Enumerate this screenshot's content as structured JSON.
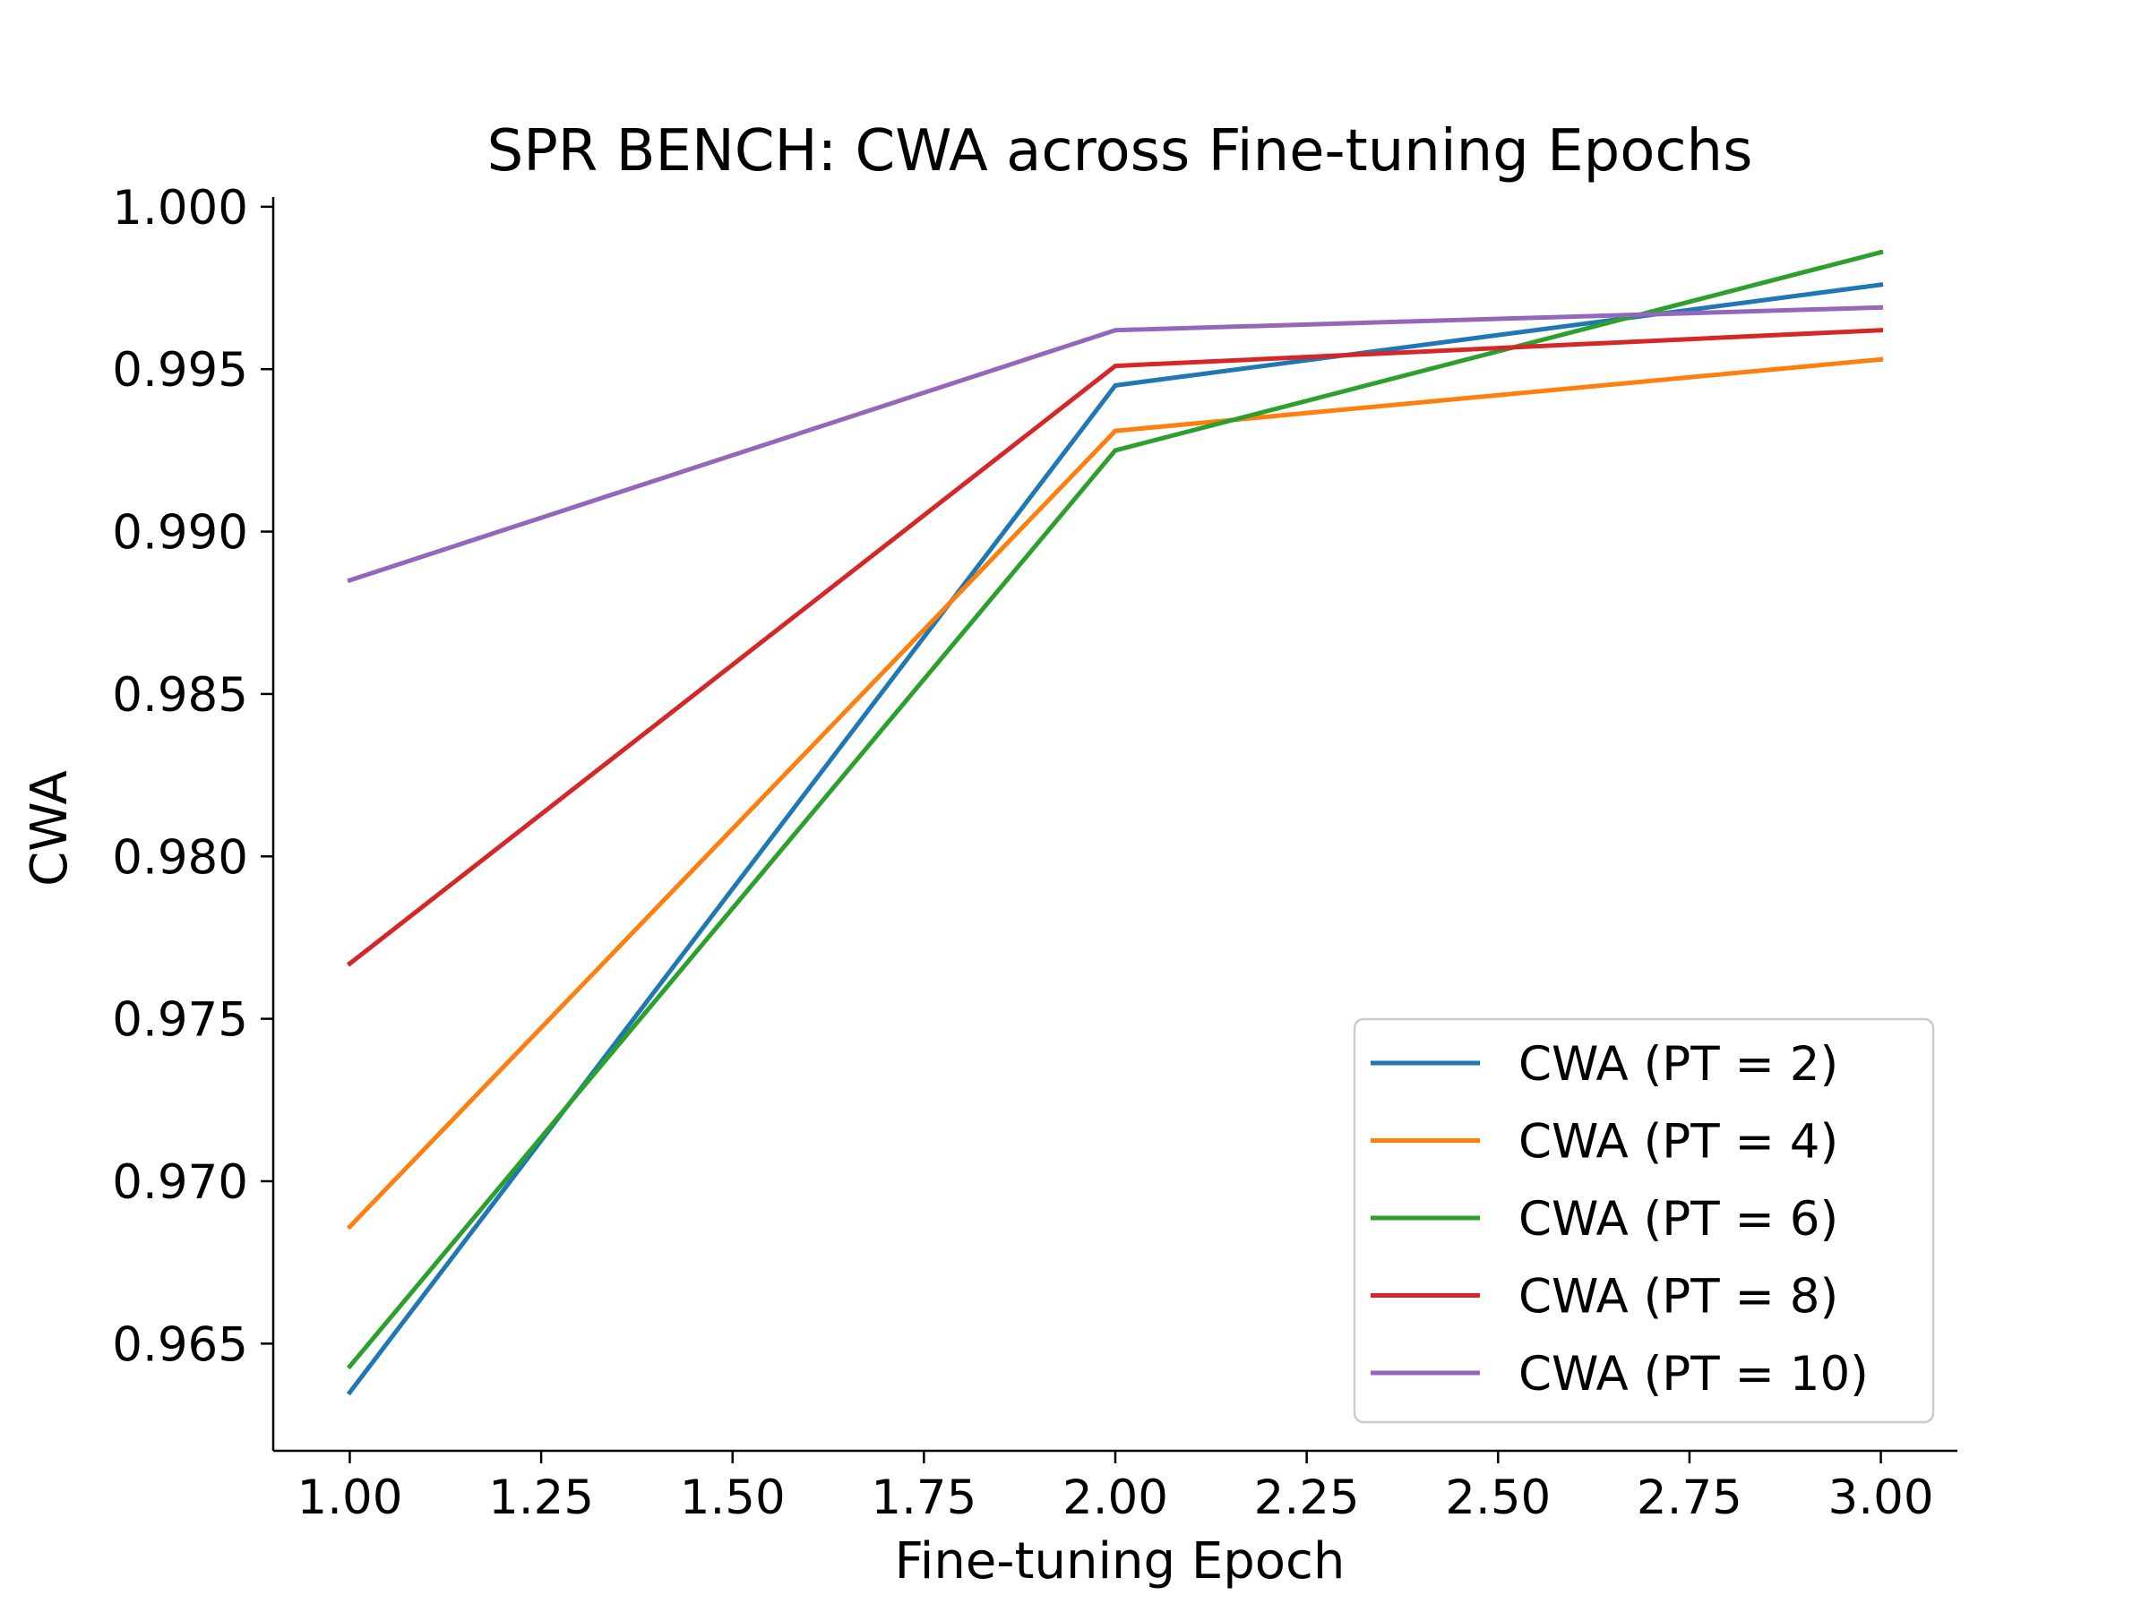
{
  "chart_data": {
    "type": "line",
    "title": "SPR BENCH: CWA across Fine-tuning Epochs",
    "xlabel": "Fine-tuning Epoch",
    "ylabel": "CWA",
    "x": [
      1.0,
      2.0,
      3.0
    ],
    "xlim": [
      0.9,
      3.1
    ],
    "ylim": [
      0.9617,
      1.0003
    ],
    "xticks": [
      1.0,
      1.25,
      1.5,
      1.75,
      2.0,
      2.25,
      2.5,
      2.75,
      3.0
    ],
    "xtick_labels": [
      "1.00",
      "1.25",
      "1.50",
      "1.75",
      "2.00",
      "2.25",
      "2.50",
      "2.75",
      "3.00"
    ],
    "yticks": [
      0.965,
      0.97,
      0.975,
      0.98,
      0.985,
      0.99,
      0.995,
      1.0
    ],
    "ytick_labels": [
      "0.965",
      "0.970",
      "0.975",
      "0.980",
      "0.985",
      "0.990",
      "0.995",
      "1.000"
    ],
    "grid": false,
    "legend_position": "lower-right",
    "series": [
      {
        "name": "CWA (PT = 2)",
        "color": "#1f77b4",
        "values": [
          0.9635,
          0.9945,
          0.9976
        ]
      },
      {
        "name": "CWA (PT = 4)",
        "color": "#ff7f0e",
        "values": [
          0.9686,
          0.9931,
          0.9953
        ]
      },
      {
        "name": "CWA (PT = 6)",
        "color": "#2ca02c",
        "values": [
          0.9643,
          0.9925,
          0.9986
        ]
      },
      {
        "name": "CWA (PT = 8)",
        "color": "#d62728",
        "values": [
          0.9767,
          0.9951,
          0.9962
        ]
      },
      {
        "name": "CWA (PT = 10)",
        "color": "#9467bd",
        "values": [
          0.9885,
          0.9962,
          0.9969
        ]
      }
    ]
  }
}
